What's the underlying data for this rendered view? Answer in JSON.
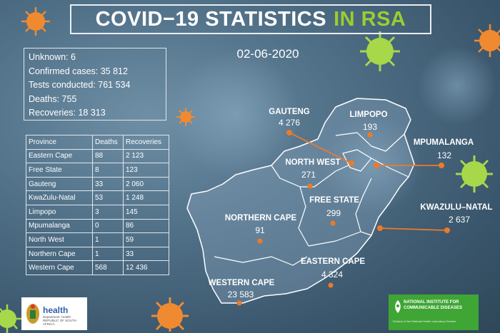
{
  "title": {
    "main": "COVID−19 STATISTICS",
    "highlight": "IN RSA"
  },
  "date": "02-06-2020",
  "summary": {
    "unknown": "Unknown: 6",
    "confirmed": "Confirmed cases: 35 812",
    "tests": "Tests conducted: 761 534",
    "deaths": "Deaths: 755",
    "recoveries": "Recoveries:  18 313"
  },
  "table": {
    "headers": [
      "Province",
      "Deaths",
      "Recoveries"
    ],
    "rows": [
      [
        "Eastern Cape",
        "88",
        "2 123"
      ],
      [
        "Free State",
        "8",
        "123"
      ],
      [
        "Gauteng",
        "33",
        "2 060"
      ],
      [
        "KwaZulu-Natal",
        "53",
        "1 248"
      ],
      [
        "Limpopo",
        "3",
        "145"
      ],
      [
        "Mpumalanga",
        "0",
        "86"
      ],
      [
        "North West",
        "1",
        "59"
      ],
      [
        "Northern Cape",
        "1",
        "33"
      ],
      [
        "Western Cape",
        "568",
        "12 436"
      ]
    ]
  },
  "map": {
    "gauteng": {
      "label": "GAUTENG",
      "value": "4 276"
    },
    "limpopo": {
      "label": "LIMPOPO",
      "value": "193"
    },
    "mpumalanga": {
      "label": "MPUMALANGA",
      "value": "132"
    },
    "north_west": {
      "label": "NORTH WEST",
      "value": "271"
    },
    "free_state": {
      "label": "FREE STATE",
      "value": "299"
    },
    "kwazulu_natal": {
      "label": "KWAZULU–NATAL",
      "value": "2 637"
    },
    "northern_cape": {
      "label": "NORTHERN CAPE",
      "value": "91"
    },
    "eastern_cape": {
      "label": "EASTERN CAPE",
      "value": "4 324"
    },
    "western_cape": {
      "label": "WESTERN CAPE",
      "value": "23 583"
    }
  },
  "logos": {
    "health": "health",
    "health_sub": "Department: Health REPUBLIC OF SOUTH AFRICA",
    "nicd_title": "NATIONAL INSTITUTE FOR COMMUNICABLE DISEASES",
    "nicd_sub": "Division of the National Health Laboratory Service"
  },
  "colors": {
    "accent": "#9acd32",
    "marker": "#f07a24",
    "line": "#f07a24",
    "virus_orange": "#f08a30",
    "virus_green": "#a6d84a"
  }
}
